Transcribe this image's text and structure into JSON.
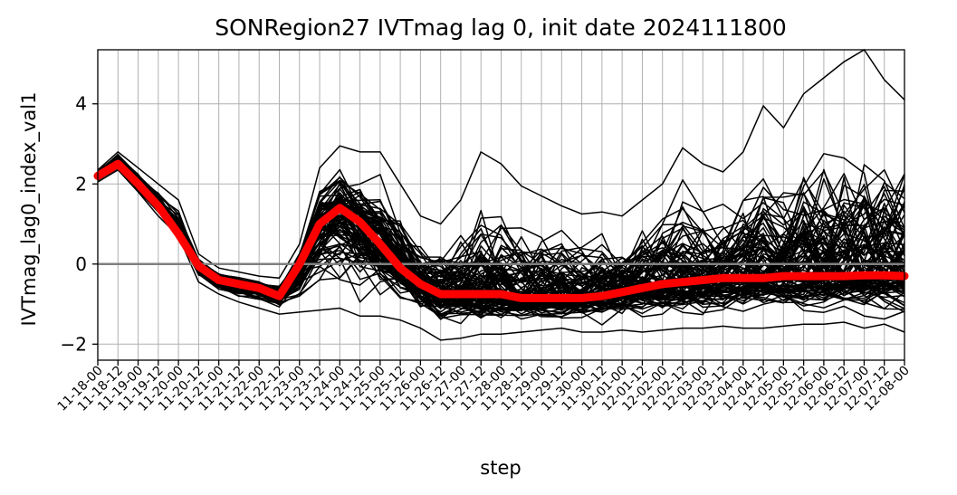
{
  "chart_data": {
    "type": "line",
    "title": "SONRegion27 IVTmag lag 0, init date 2024111800",
    "xlabel": "step",
    "ylabel": "IVTmag_lag0_index_val1",
    "categories": [
      "11-18-00",
      "11-18-12",
      "11-19-00",
      "11-19-12",
      "11-20-00",
      "11-20-12",
      "11-21-00",
      "11-21-12",
      "11-22-00",
      "11-22-12",
      "11-23-00",
      "11-23-12",
      "11-24-00",
      "11-24-12",
      "11-25-00",
      "11-25-12",
      "11-26-00",
      "11-26-12",
      "11-27-00",
      "11-27-12",
      "11-28-00",
      "11-28-12",
      "11-29-00",
      "11-29-12",
      "11-30-00",
      "11-30-12",
      "12-01-00",
      "12-01-12",
      "12-02-00",
      "12-02-12",
      "12-03-00",
      "12-03-12",
      "12-04-00",
      "12-04-12",
      "12-05-00",
      "12-05-12",
      "12-06-00",
      "12-06-12",
      "12-07-00",
      "12-07-12",
      "12-08-00"
    ],
    "yticks": [
      -2,
      0,
      2,
      4
    ],
    "ylim": [
      -2.4,
      5.35
    ],
    "grid": true,
    "ensemble_member_count": 100,
    "ensemble_envelope": {
      "low": [
        2.05,
        2.35,
        1.8,
        1.2,
        0.7,
        -0.45,
        -0.75,
        -0.95,
        -1.1,
        -1.25,
        -1.2,
        -1.15,
        -1.1,
        -1.3,
        -1.3,
        -1.4,
        -1.6,
        -1.9,
        -1.85,
        -1.75,
        -1.75,
        -1.7,
        -1.65,
        -1.6,
        -1.7,
        -1.7,
        -1.65,
        -1.7,
        -1.65,
        -1.6,
        -1.6,
        -1.55,
        -1.6,
        -1.6,
        -1.55,
        -1.5,
        -1.5,
        -1.45,
        -1.6,
        -1.5,
        -1.7
      ],
      "high": [
        2.35,
        2.8,
        2.4,
        2.0,
        1.6,
        0.25,
        -0.1,
        -0.2,
        -0.3,
        -0.35,
        0.5,
        2.4,
        2.95,
        2.8,
        2.8,
        2.0,
        1.2,
        1.0,
        1.6,
        2.8,
        2.5,
        1.95,
        1.7,
        1.45,
        1.25,
        1.3,
        1.2,
        1.6,
        2.0,
        2.9,
        2.5,
        2.3,
        2.8,
        3.95,
        3.4,
        4.25,
        4.65,
        5.05,
        5.35,
        4.6,
        4.1
      ]
    },
    "series": [
      {
        "name": "",
        "color": "#ff0000",
        "values": [
          2.2,
          2.5,
          2.0,
          1.45,
          0.75,
          -0.05,
          -0.4,
          -0.5,
          -0.6,
          -0.8,
          0.0,
          1.0,
          1.4,
          1.05,
          0.5,
          -0.1,
          -0.5,
          -0.75,
          -0.75,
          -0.75,
          -0.75,
          -0.85,
          -0.85,
          -0.85,
          -0.85,
          -0.8,
          -0.7,
          -0.6,
          -0.5,
          -0.45,
          -0.4,
          -0.35,
          -0.35,
          -0.35,
          -0.3,
          -0.3,
          -0.3,
          -0.3,
          -0.28,
          -0.28,
          -0.3
        ]
      }
    ],
    "zero_line": {
      "y": 0,
      "color": "#808080"
    }
  }
}
